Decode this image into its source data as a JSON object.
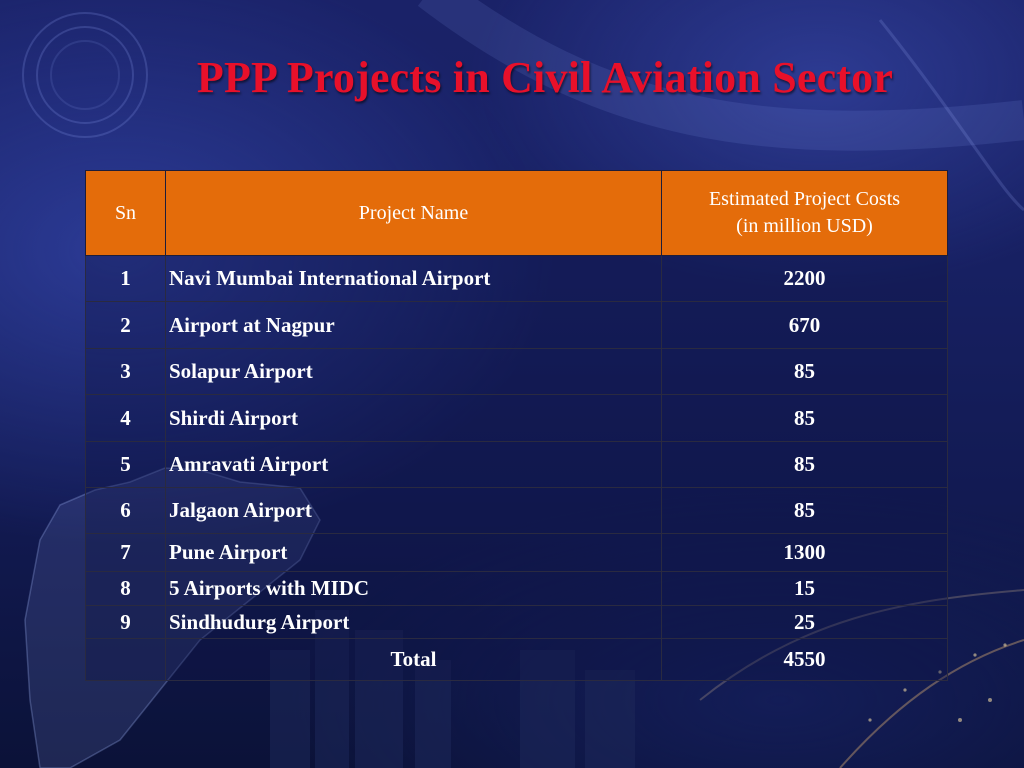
{
  "slide": {
    "title": "PPP Projects in Civil Aviation Sector"
  },
  "table": {
    "headers": {
      "sn": "Sn",
      "name": "Project Name",
      "cost_line1": "Estimated Project Costs",
      "cost_line2": "(in million USD)"
    },
    "rows": [
      {
        "sn": "1",
        "name": "Navi Mumbai International Airport",
        "cost": "2200"
      },
      {
        "sn": "2",
        "name": "Airport at Nagpur",
        "cost": "670"
      },
      {
        "sn": "3",
        "name": "Solapur Airport",
        "cost": "85"
      },
      {
        "sn": "4",
        "name": "Shirdi Airport",
        "cost": "85"
      },
      {
        "sn": "5",
        "name": "Amravati Airport",
        "cost": "85"
      },
      {
        "sn": "6",
        "name": "Jalgaon Airport",
        "cost": "85"
      },
      {
        "sn": "7",
        "name": "Pune Airport",
        "cost": "1300"
      },
      {
        "sn": "8",
        "name": "5 Airports with MIDC",
        "cost": "15"
      },
      {
        "sn": "9",
        "name": "Sindhudurg Airport",
        "cost": "25"
      }
    ],
    "total": {
      "sn": "",
      "label": "Total",
      "cost": "4550"
    }
  },
  "colors": {
    "title": "#e8102a",
    "header_fill": "#e46c0a",
    "background": "#172062",
    "text": "#ffffff"
  }
}
